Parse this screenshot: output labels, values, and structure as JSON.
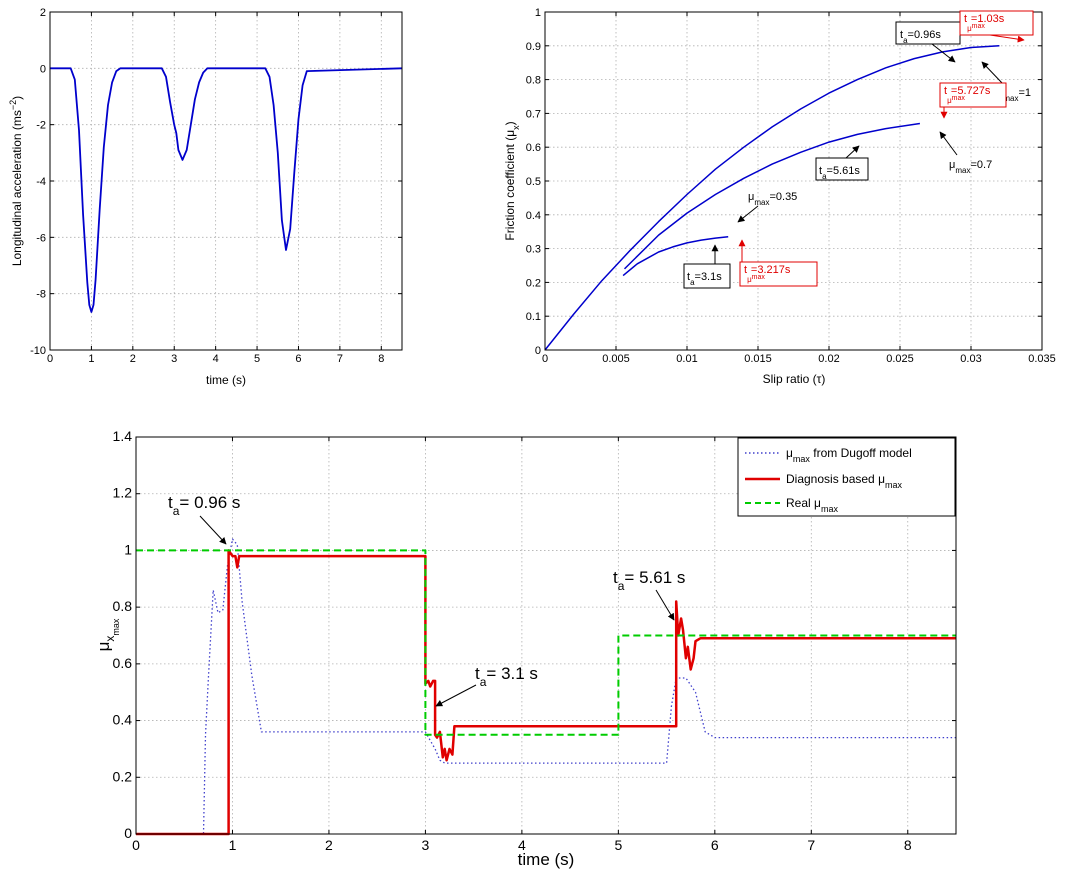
{
  "chart_data": [
    {
      "id": "acc",
      "type": "line",
      "xlabel": "time (s)",
      "ylabel": "Longitudinal acceleration (ms",
      "ylabel_sup": "−2",
      "ylabel_close": ")",
      "xlim": [
        0,
        8.5
      ],
      "ylim": [
        -10,
        2
      ],
      "xticks": [
        0,
        1,
        2,
        3,
        4,
        5,
        6,
        7,
        8
      ],
      "yticks": [
        -10,
        -8,
        -6,
        -4,
        -2,
        0,
        2
      ],
      "color": "#0000cc",
      "series": [
        {
          "x": [
            0,
            0.4,
            0.5,
            0.6,
            0.7,
            0.8,
            0.9,
            0.95,
            1.0,
            1.05,
            1.1,
            1.2,
            1.3,
            1.4,
            1.5,
            1.6,
            1.7,
            2.7,
            2.8,
            2.9,
            3.0,
            3.05,
            3.1,
            3.2,
            3.3,
            3.4,
            3.5,
            3.6,
            3.7,
            3.8,
            5.2,
            5.3,
            5.4,
            5.5,
            5.6,
            5.7,
            5.8,
            5.9,
            6.0,
            6.1,
            6.2,
            8.5
          ],
          "y": [
            0,
            0,
            0,
            -0.4,
            -2.2,
            -5.2,
            -7.6,
            -8.4,
            -8.65,
            -8.4,
            -7.5,
            -5.0,
            -2.8,
            -1.3,
            -0.5,
            -0.1,
            0,
            0,
            -0.3,
            -1.2,
            -2.0,
            -2.3,
            -2.9,
            -3.25,
            -2.9,
            -2.0,
            -1.1,
            -0.5,
            -0.15,
            0,
            0,
            -0.3,
            -1.3,
            -3.0,
            -5.4,
            -6.45,
            -5.7,
            -3.7,
            -1.8,
            -0.6,
            -0.1,
            0
          ]
        }
      ]
    },
    {
      "id": "slip",
      "type": "line",
      "xlabel": "Slip ratio (τ)",
      "ylabel": "Friction coefficient (μ",
      "ylabel_sub": "x",
      "ylabel_close": ")",
      "xlim": [
        0,
        0.035
      ],
      "ylim": [
        0,
        1
      ],
      "xticks": [
        0,
        0.005,
        0.01,
        0.015,
        0.02,
        0.025,
        0.03,
        0.035
      ],
      "xtick_labels": [
        "0",
        "0.005",
        "0.01",
        "0.015",
        "0.02",
        "0.025",
        "0.03",
        "0.035"
      ],
      "yticks": [
        0,
        0.1,
        0.2,
        0.3,
        0.4,
        0.5,
        0.6,
        0.7,
        0.8,
        0.9,
        1
      ],
      "color": "#0000cc",
      "series": [
        {
          "x": [
            0,
            0.002,
            0.004,
            0.006,
            0.008,
            0.01,
            0.012,
            0.014,
            0.016,
            0.018,
            0.02,
            0.022,
            0.024,
            0.026,
            0.028,
            0.03,
            0.032
          ],
          "y": [
            0,
            0.105,
            0.205,
            0.295,
            0.38,
            0.46,
            0.535,
            0.6,
            0.66,
            0.713,
            0.76,
            0.8,
            0.835,
            0.862,
            0.882,
            0.895,
            0.9
          ]
        },
        {
          "x": [
            0.0056,
            0.008,
            0.01,
            0.012,
            0.014,
            0.016,
            0.018,
            0.02,
            0.022,
            0.024,
            0.0264
          ],
          "y": [
            0.24,
            0.34,
            0.405,
            0.46,
            0.508,
            0.55,
            0.585,
            0.615,
            0.638,
            0.655,
            0.67
          ]
        },
        {
          "x": [
            0.0055,
            0.0065,
            0.008,
            0.009,
            0.01,
            0.011,
            0.012,
            0.0129
          ],
          "y": [
            0.22,
            0.255,
            0.29,
            0.305,
            0.317,
            0.325,
            0.331,
            0.335
          ]
        }
      ],
      "annotations": [
        {
          "kind": "box",
          "text": "t",
          "sub": "a",
          "tail": "=0.96s",
          "color": "#000000"
        },
        {
          "kind": "box",
          "text": "t",
          "sub": "μ",
          "sub2": "max",
          "tail": "=1.03s",
          "color": "#e00000"
        },
        {
          "kind": "plain",
          "text": "μ",
          "sub": "max",
          "tail": "=1",
          "color": "#000000"
        },
        {
          "kind": "box",
          "text": "t",
          "sub": "μ",
          "sub2": "max",
          "tail": "=5.727s",
          "color": "#e00000"
        },
        {
          "kind": "box",
          "text": "t",
          "sub": "a",
          "tail": "=5.61s",
          "color": "#000000"
        },
        {
          "kind": "plain",
          "text": "μ",
          "sub": "max",
          "tail": "=0.7",
          "color": "#000000"
        },
        {
          "kind": "plain",
          "text": "μ",
          "sub": "max",
          "tail": "=0.35",
          "color": "#000000"
        },
        {
          "kind": "box",
          "text": "t",
          "sub": "a",
          "tail": "=3.1s",
          "color": "#000000"
        },
        {
          "kind": "box",
          "text": "t",
          "sub": "μ",
          "sub2": "max",
          "tail": "=3.217s",
          "color": "#e00000"
        }
      ]
    },
    {
      "id": "mu",
      "type": "line",
      "xlabel": "time (s)",
      "ylabel": "μ",
      "ylabel_sub": "x",
      "ylabel_sub2": "max",
      "xlim": [
        0,
        8.5
      ],
      "ylim": [
        0,
        1.4
      ],
      "xticks": [
        0,
        1,
        2,
        3,
        4,
        5,
        6,
        7,
        8
      ],
      "yticks": [
        0,
        0.2,
        0.4,
        0.6,
        0.8,
        1,
        1.2,
        1.4
      ],
      "series": [
        {
          "name": "from Dugoff model",
          "name_prefix": "μ",
          "name_sub": "max",
          "color": "#4040cc",
          "style": "dotted",
          "x": [
            0,
            0.7,
            0.72,
            0.75,
            0.8,
            0.85,
            0.9,
            0.95,
            1.0,
            1.05,
            1.1,
            1.2,
            1.3,
            3.0,
            3.05,
            3.1,
            3.15,
            3.2,
            5.5,
            5.55,
            5.6,
            5.7,
            5.8,
            5.9,
            6.0,
            8.5
          ],
          "y": [
            0,
            0,
            0.35,
            0.55,
            0.86,
            0.78,
            0.79,
            0.95,
            1.04,
            1.02,
            0.82,
            0.56,
            0.36,
            0.36,
            0.33,
            0.3,
            0.26,
            0.25,
            0.25,
            0.45,
            0.55,
            0.55,
            0.5,
            0.36,
            0.34,
            0.34
          ]
        },
        {
          "name": "Diagnosis based",
          "name_suffix": "μ",
          "name_sub": "max",
          "color": "#e00000",
          "style": "solid",
          "x": [
            0,
            0.96,
            0.96,
            1.0,
            1.03,
            1.05,
            1.07,
            1.1,
            3.0,
            3.0,
            3.03,
            3.05,
            3.08,
            3.1,
            3.1,
            3.12,
            3.15,
            3.18,
            3.2,
            3.22,
            3.25,
            3.28,
            3.3,
            3.3,
            5.6,
            5.6,
            5.62,
            5.65,
            5.67,
            5.7,
            5.72,
            5.75,
            5.78,
            5.8,
            5.85,
            8.5
          ],
          "y": [
            0,
            0,
            1.0,
            0.98,
            0.98,
            0.94,
            0.98,
            0.98,
            0.98,
            0.53,
            0.54,
            0.52,
            0.54,
            0.54,
            0.35,
            0.34,
            0.36,
            0.27,
            0.3,
            0.26,
            0.3,
            0.28,
            0.38,
            0.38,
            0.38,
            0.82,
            0.7,
            0.76,
            0.72,
            0.62,
            0.66,
            0.58,
            0.62,
            0.68,
            0.69,
            0.69
          ]
        },
        {
          "name": "Real",
          "name_suffix": "μ",
          "name_sub": "max",
          "color": "#00cc00",
          "style": "dashed",
          "x": [
            0,
            3.0,
            3.0,
            5.0,
            5.0,
            8.5
          ],
          "y": [
            1.0,
            1.0,
            0.35,
            0.35,
            0.7,
            0.7
          ]
        }
      ],
      "annotations": [
        {
          "text": "t",
          "sub": "a",
          "tail": "= 0.96 s"
        },
        {
          "text": "t",
          "sub": "a",
          "tail": "= 3.1 s"
        },
        {
          "text": "t",
          "sub": "a",
          "tail": "= 5.61 s"
        }
      ],
      "legend": "top-right"
    }
  ]
}
